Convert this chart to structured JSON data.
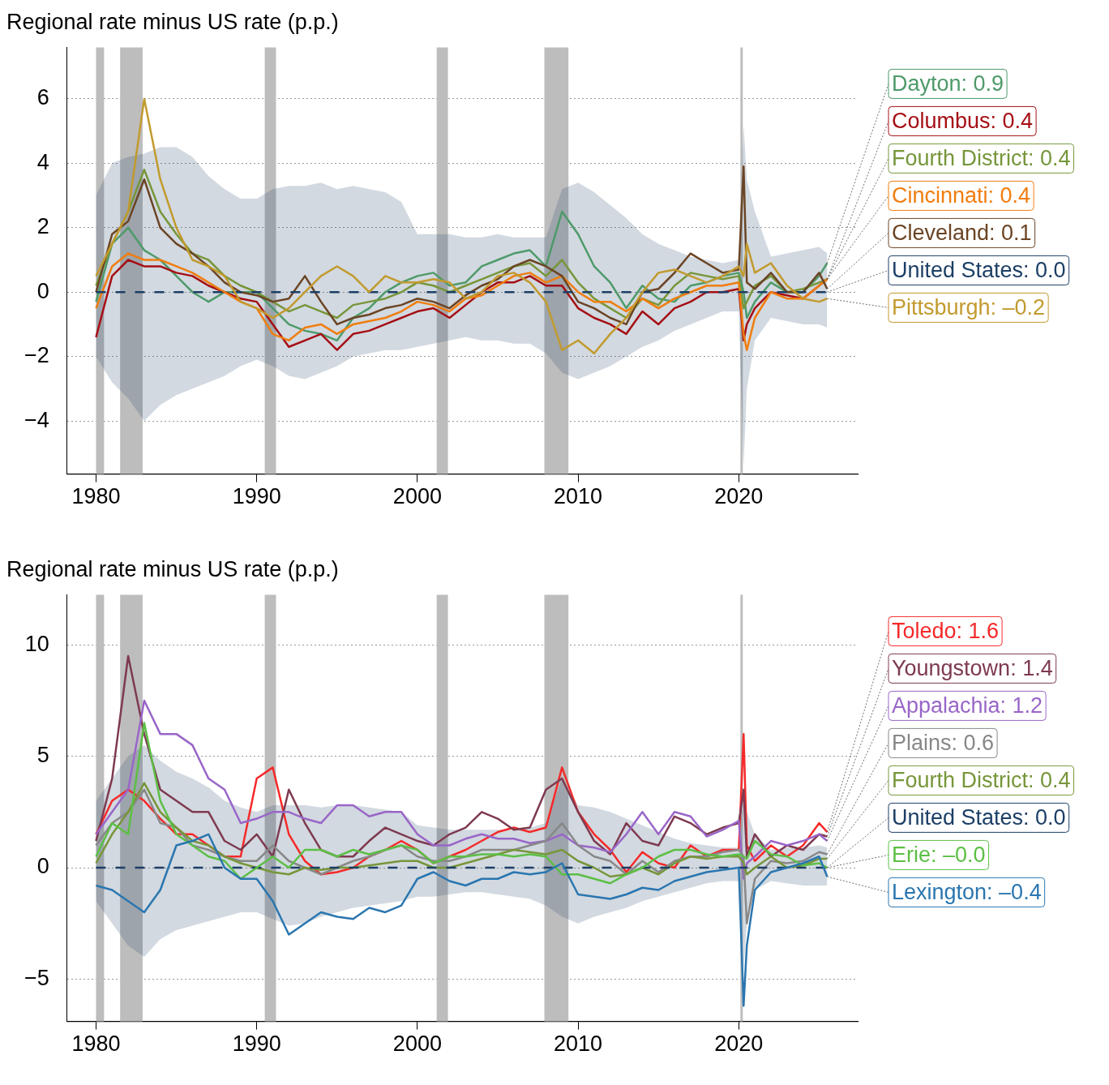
{
  "chart_data": [
    {
      "type": "line",
      "title": "Regional rate minus US rate (p.p.)",
      "x": [
        1980,
        1981,
        1982,
        1983,
        1984,
        1985,
        1986,
        1987,
        1988,
        1989,
        1990,
        1991,
        1992,
        1993,
        1994,
        1995,
        1996,
        1997,
        1998,
        1999,
        2000,
        2001,
        2002,
        2003,
        2004,
        2005,
        2006,
        2007,
        2008,
        2009,
        2010,
        2011,
        2012,
        2013,
        2014,
        2015,
        2016,
        2017,
        2018,
        2019,
        2020,
        2020.3,
        2020.5,
        2021,
        2022,
        2023,
        2024,
        2025,
        2025.5
      ],
      "xlim": [
        1978.2,
        2027.4
      ],
      "xticks": [
        1980,
        1990,
        2000,
        2010,
        2020
      ],
      "ylim": [
        -5.65,
        7.6
      ],
      "yticks": [
        {
          "value": -4,
          "label": "−4"
        },
        {
          "value": -2,
          "label": "−2"
        },
        0,
        2,
        4,
        6
      ],
      "grid": "y",
      "legend": "right",
      "bands": [
        {
          "axis": "x",
          "from": 1980,
          "to": 1980.5,
          "color": "#bdbdbd"
        },
        {
          "axis": "x",
          "from": 1981.5,
          "to": 1982.9,
          "color": "#bdbdbd"
        },
        {
          "axis": "x",
          "from": 1990.5,
          "to": 1991.2,
          "color": "#bdbdbd"
        },
        {
          "axis": "x",
          "from": 2001.2,
          "to": 2001.9,
          "color": "#bdbdbd"
        },
        {
          "axis": "x",
          "from": 2007.9,
          "to": 2009.4,
          "color": "#bdbdbd"
        },
        {
          "axis": "x",
          "from": 2020.1,
          "to": 2020.25,
          "color": "#bdbdbd"
        }
      ],
      "series": [
        {
          "name": "Dayton: 0.9",
          "color": "#4e9a6a",
          "values": [
            -0.3,
            1.5,
            2.0,
            1.3,
            1.0,
            0.5,
            0.0,
            -0.3,
            0.0,
            0.0,
            0.0,
            -0.5,
            -1.0,
            -1.2,
            -1.3,
            -1.5,
            -0.8,
            -0.5,
            0.0,
            0.3,
            0.5,
            0.6,
            0.2,
            0.3,
            0.8,
            1.0,
            1.2,
            1.3,
            0.8,
            2.5,
            1.8,
            0.8,
            0.3,
            -0.5,
            0.2,
            -0.2,
            -0.3,
            0.2,
            0.3,
            0.5,
            0.6,
            0.0,
            -0.8,
            -0.3,
            0.3,
            0.0,
            0.0,
            0.5,
            0.9
          ]
        },
        {
          "name": "Columbus: 0.4",
          "color": "#a50f15",
          "values": [
            -1.4,
            0.5,
            1.0,
            0.8,
            0.8,
            0.6,
            0.5,
            0.2,
            0.0,
            -0.2,
            -0.3,
            -1.0,
            -1.7,
            -1.5,
            -1.3,
            -1.8,
            -1.3,
            -1.2,
            -1.0,
            -0.8,
            -0.6,
            -0.5,
            -0.8,
            -0.4,
            0.0,
            0.3,
            0.3,
            0.5,
            0.2,
            0.2,
            -0.5,
            -0.8,
            -1.0,
            -1.3,
            -0.6,
            -1.0,
            -0.5,
            -0.3,
            0.0,
            0.0,
            0.1,
            -1.5,
            -1.0,
            -0.5,
            0.0,
            -0.1,
            -0.2,
            0.2,
            0.4
          ]
        },
        {
          "name": "Fourth District: 0.4",
          "color": "#77963a",
          "values": [
            0.2,
            1.5,
            2.5,
            3.8,
            2.5,
            1.8,
            1.2,
            1.0,
            0.5,
            0.2,
            0.0,
            -0.3,
            -0.6,
            -0.4,
            -0.6,
            -0.8,
            -0.4,
            -0.3,
            -0.2,
            0.0,
            0.3,
            0.2,
            0.0,
            0.2,
            0.4,
            0.6,
            0.8,
            0.9,
            0.5,
            1.0,
            0.3,
            -0.2,
            -0.5,
            -0.8,
            -0.2,
            -0.4,
            0.2,
            0.6,
            0.5,
            0.4,
            0.5,
            -0.5,
            -0.3,
            0.2,
            0.5,
            0.0,
            0.1,
            0.3,
            0.4
          ]
        },
        {
          "name": "Cincinnati: 0.4",
          "color": "#f07d0f",
          "values": [
            -0.5,
            0.8,
            1.2,
            1.0,
            1.0,
            0.8,
            0.6,
            0.3,
            0.0,
            -0.3,
            -0.5,
            -1.3,
            -1.5,
            -1.1,
            -1.0,
            -1.3,
            -1.0,
            -0.9,
            -0.8,
            -0.6,
            -0.3,
            -0.4,
            -0.6,
            -0.2,
            -0.1,
            0.2,
            0.5,
            0.6,
            0.3,
            0.5,
            0.0,
            -0.3,
            -0.3,
            -0.6,
            -0.2,
            -0.5,
            -0.2,
            0.0,
            0.2,
            0.2,
            0.3,
            -1.3,
            -1.8,
            -0.8,
            0.0,
            -0.2,
            -0.2,
            0.2,
            0.4
          ]
        },
        {
          "name": "Cleveland: 0.1",
          "color": "#6b4424",
          "values": [
            0.0,
            1.8,
            2.2,
            3.5,
            2.0,
            1.5,
            1.2,
            0.8,
            0.3,
            0.0,
            -0.1,
            -0.3,
            -0.2,
            0.5,
            -0.3,
            -1.0,
            -0.8,
            -0.7,
            -0.5,
            -0.4,
            -0.2,
            -0.3,
            -0.5,
            -0.1,
            0.2,
            0.4,
            0.8,
            1.0,
            0.8,
            0.5,
            -0.3,
            -0.5,
            -0.8,
            -1.0,
            0.0,
            0.1,
            0.6,
            1.2,
            0.9,
            0.6,
            0.7,
            3.9,
            0.3,
            0.1,
            0.6,
            0.0,
            0.0,
            0.6,
            0.1
          ]
        },
        {
          "name": "United States: 0.0",
          "color": "#1c3f66",
          "line_style": "dashed",
          "values": [
            0,
            0,
            0,
            0,
            0,
            0,
            0,
            0,
            0,
            0,
            0,
            0,
            0,
            0,
            0,
            0,
            0,
            0,
            0,
            0,
            0,
            0,
            0,
            0,
            0,
            0,
            0,
            0,
            0,
            0,
            0,
            0,
            0,
            0,
            0,
            0,
            0,
            0,
            0,
            0,
            0,
            0,
            0,
            0,
            0,
            0,
            0,
            0,
            0
          ],
          "lower": [
            -2.0,
            -2.8,
            -3.3,
            -4.0,
            -3.5,
            -3.2,
            -3.0,
            -2.8,
            -2.6,
            -2.3,
            -2.1,
            -2.3,
            -2.6,
            -2.7,
            -2.5,
            -2.3,
            -2.0,
            -1.9,
            -1.8,
            -1.8,
            -1.7,
            -1.6,
            -1.5,
            -1.4,
            -1.5,
            -1.5,
            -1.6,
            -1.6,
            -1.9,
            -2.5,
            -2.7,
            -2.5,
            -2.3,
            -2.0,
            -1.7,
            -1.5,
            -1.2,
            -1.0,
            -0.8,
            -0.6,
            -0.6,
            -5.4,
            -3.0,
            -1.5,
            -0.8,
            -0.9,
            -1.0,
            -1.0,
            -1.1
          ],
          "upper": [
            3.0,
            4.0,
            4.2,
            4.3,
            4.5,
            4.5,
            4.2,
            3.6,
            3.2,
            2.9,
            2.9,
            3.2,
            3.3,
            3.3,
            3.4,
            3.2,
            3.3,
            3.2,
            3.1,
            2.8,
            1.8,
            1.8,
            1.8,
            1.7,
            1.7,
            1.8,
            1.7,
            1.7,
            1.7,
            3.2,
            3.4,
            3.1,
            2.7,
            2.3,
            1.8,
            1.5,
            1.3,
            1.1,
            1.0,
            0.9,
            1.0,
            5.2,
            3.5,
            2.5,
            1.1,
            1.2,
            1.3,
            1.4,
            1.2
          ]
        },
        {
          "name": "Pittsburgh: –0.2",
          "color": "#c29a2e",
          "values": [
            0.5,
            1.5,
            2.5,
            6.0,
            3.5,
            2.0,
            1.0,
            0.8,
            0.5,
            -0.3,
            -0.5,
            -0.8,
            -0.5,
            0.0,
            0.5,
            0.8,
            0.5,
            0.0,
            0.5,
            0.3,
            0.3,
            0.4,
            0.3,
            -0.2,
            0.0,
            0.5,
            0.6,
            0.3,
            -0.3,
            -1.8,
            -1.5,
            -1.9,
            -1.3,
            -0.8,
            0.0,
            0.6,
            0.7,
            0.5,
            0.3,
            0.5,
            0.8,
            0.5,
            1.5,
            0.6,
            0.9,
            0.2,
            -0.2,
            -0.3,
            -0.2
          ]
        }
      ]
    },
    {
      "type": "line",
      "title": "Regional rate minus US rate (p.p.)",
      "x": [
        1980,
        1981,
        1982,
        1983,
        1984,
        1985,
        1986,
        1987,
        1988,
        1989,
        1990,
        1991,
        1992,
        1993,
        1994,
        1995,
        1996,
        1997,
        1998,
        1999,
        2000,
        2001,
        2002,
        2003,
        2004,
        2005,
        2006,
        2007,
        2008,
        2009,
        2010,
        2011,
        2012,
        2013,
        2014,
        2015,
        2016,
        2017,
        2018,
        2019,
        2020,
        2020.3,
        2020.5,
        2021,
        2022,
        2023,
        2024,
        2025,
        2025.5
      ],
      "xlim": [
        1978.2,
        2027.4
      ],
      "xticks": [
        1980,
        1990,
        2000,
        2010,
        2020
      ],
      "ylim": [
        -6.9,
        12.25
      ],
      "yticks": [
        {
          "value": -5,
          "label": "−5"
        },
        0,
        5,
        10
      ],
      "grid": "y",
      "legend": "right",
      "bands": [
        {
          "axis": "x",
          "from": 1980,
          "to": 1980.5,
          "color": "#bdbdbd"
        },
        {
          "axis": "x",
          "from": 1981.5,
          "to": 1982.9,
          "color": "#bdbdbd"
        },
        {
          "axis": "x",
          "from": 1990.5,
          "to": 1991.2,
          "color": "#bdbdbd"
        },
        {
          "axis": "x",
          "from": 2001.2,
          "to": 2001.9,
          "color": "#bdbdbd"
        },
        {
          "axis": "x",
          "from": 2007.9,
          "to": 2009.4,
          "color": "#bdbdbd"
        },
        {
          "axis": "x",
          "from": 2020.1,
          "to": 2020.25,
          "color": "#bdbdbd"
        }
      ],
      "series": [
        {
          "name": "Toledo: 1.6",
          "color": "#f52a2a",
          "values": [
            1.5,
            3.0,
            3.5,
            3.0,
            2.2,
            1.5,
            1.5,
            1.0,
            0.5,
            0.5,
            4.0,
            4.5,
            1.5,
            0.3,
            -0.3,
            -0.2,
            0.0,
            0.5,
            0.8,
            1.2,
            0.8,
            0.2,
            0.5,
            0.8,
            1.2,
            1.6,
            1.8,
            1.6,
            1.8,
            4.5,
            2.5,
            1.5,
            0.8,
            -0.2,
            0.7,
            0.2,
            0.0,
            1.0,
            0.5,
            0.8,
            0.8,
            6.0,
            1.0,
            0.3,
            1.0,
            0.5,
            1.0,
            2.0,
            1.6
          ]
        },
        {
          "name": "Youngstown: 1.4",
          "color": "#7e3a50",
          "values": [
            1.2,
            4.0,
            9.5,
            6.0,
            3.5,
            3.0,
            2.5,
            2.5,
            1.2,
            0.8,
            1.5,
            0.5,
            3.5,
            2.0,
            0.8,
            0.5,
            0.5,
            1.2,
            1.8,
            1.5,
            1.2,
            1.0,
            1.5,
            1.8,
            2.5,
            2.2,
            1.7,
            1.8,
            3.5,
            4.0,
            2.5,
            1.2,
            0.6,
            2.0,
            1.2,
            1.0,
            2.3,
            2.0,
            1.5,
            1.8,
            2.0,
            3.5,
            0.5,
            1.5,
            0.5,
            1.0,
            0.8,
            1.5,
            1.4
          ]
        },
        {
          "name": "Appalachia: 1.2",
          "color": "#9966c8",
          "values": [
            1.5,
            2.5,
            3.5,
            7.5,
            6.0,
            6.0,
            5.5,
            4.0,
            3.5,
            2.0,
            2.2,
            2.5,
            2.5,
            2.2,
            2.0,
            2.8,
            2.8,
            2.3,
            2.5,
            2.5,
            1.5,
            1.0,
            1.0,
            1.3,
            1.5,
            1.3,
            1.3,
            1.1,
            1.2,
            1.5,
            1.0,
            0.9,
            0.7,
            1.5,
            2.5,
            1.5,
            2.5,
            2.3,
            1.4,
            1.7,
            2.1,
            -0.5,
            0.2,
            0.5,
            1.2,
            1.0,
            1.2,
            1.5,
            1.2
          ]
        },
        {
          "name": "Plains: 0.6",
          "color": "#888888",
          "values": [
            1.0,
            2.0,
            2.5,
            3.5,
            2.0,
            1.8,
            1.0,
            0.8,
            0.5,
            0.3,
            0.3,
            1.0,
            0.3,
            0.0,
            -0.3,
            0.0,
            0.3,
            0.5,
            0.8,
            1.0,
            0.5,
            0.3,
            0.3,
            0.5,
            0.8,
            0.8,
            0.8,
            1.0,
            1.2,
            2.0,
            1.0,
            0.5,
            0.3,
            -0.3,
            0.3,
            -0.2,
            0.3,
            0.5,
            0.5,
            0.7,
            0.8,
            0.5,
            -2.5,
            -0.5,
            0.3,
            0.2,
            0.3,
            0.7,
            0.6
          ]
        },
        {
          "name": "Fourth District: 0.4",
          "color": "#77963a",
          "values": [
            0.2,
            1.5,
            2.5,
            3.8,
            2.5,
            1.8,
            1.2,
            1.0,
            0.5,
            0.2,
            0.0,
            -0.2,
            -0.3,
            0.0,
            -0.1,
            0.0,
            0.0,
            0.1,
            0.2,
            0.3,
            0.3,
            0.0,
            0.0,
            0.2,
            0.4,
            0.6,
            0.8,
            0.7,
            0.6,
            0.8,
            0.3,
            0.0,
            -0.4,
            -0.3,
            0.0,
            -0.3,
            0.2,
            0.5,
            0.4,
            0.5,
            0.5,
            0.2,
            -0.3,
            0.0,
            0.5,
            0.0,
            0.1,
            0.4,
            0.4
          ]
        },
        {
          "name": "United States: 0.0",
          "color": "#1c3f66",
          "line_style": "dashed",
          "values": [
            0,
            0,
            0,
            0,
            0,
            0,
            0,
            0,
            0,
            0,
            0,
            0,
            0,
            0,
            0,
            0,
            0,
            0,
            0,
            0,
            0,
            0,
            0,
            0,
            0,
            0,
            0,
            0,
            0,
            0,
            0,
            0,
            0,
            0,
            0,
            0,
            0,
            0,
            0,
            0,
            0,
            0,
            0,
            0,
            0,
            0,
            0,
            0,
            0
          ],
          "lower": [
            -1.5,
            -2.5,
            -3.5,
            -4.0,
            -3.2,
            -2.8,
            -2.6,
            -2.4,
            -2.2,
            -2.0,
            -2.0,
            -2.3,
            -2.6,
            -2.5,
            -2.2,
            -2.0,
            -1.8,
            -1.7,
            -1.6,
            -1.5,
            -1.3,
            -1.3,
            -1.2,
            -1.1,
            -1.1,
            -1.2,
            -1.3,
            -1.4,
            -1.7,
            -2.2,
            -2.5,
            -2.2,
            -2.0,
            -1.8,
            -1.5,
            -1.3,
            -1.1,
            -0.9,
            -0.7,
            -0.6,
            -0.6,
            -4.5,
            -2.5,
            -1.0,
            -0.6,
            -0.7,
            -0.8,
            -0.8,
            -0.8
          ],
          "upper": [
            3.0,
            4.0,
            5.0,
            5.5,
            4.8,
            4.3,
            4.0,
            3.6,
            3.0,
            2.7,
            2.5,
            2.8,
            2.8,
            2.8,
            2.7,
            2.8,
            2.8,
            2.7,
            2.6,
            2.5,
            1.9,
            1.8,
            1.7,
            1.7,
            1.7,
            1.7,
            1.7,
            1.8,
            2.0,
            4.0,
            2.8,
            2.7,
            2.5,
            2.2,
            1.9,
            1.6,
            1.3,
            1.1,
            1.0,
            0.9,
            0.9,
            3.5,
            2.5,
            1.5,
            0.8,
            0.9,
            0.9,
            1.0,
            0.9
          ]
        },
        {
          "name": "Erie: –0.0",
          "color": "#5cbf45",
          "values": [
            0.5,
            2.0,
            1.5,
            6.5,
            3.0,
            1.5,
            1.0,
            0.5,
            0.3,
            -0.5,
            0.0,
            0.5,
            0.0,
            0.8,
            0.8,
            0.5,
            0.8,
            0.6,
            0.8,
            1.0,
            0.8,
            0.2,
            0.5,
            0.5,
            0.6,
            0.6,
            0.5,
            0.6,
            0.5,
            -0.3,
            -0.3,
            -0.5,
            -0.7,
            -0.3,
            0.0,
            0.5,
            0.8,
            0.8,
            0.6,
            0.5,
            0.6,
            0.5,
            0.4,
            1.2,
            0.6,
            0.5,
            0.1,
            0.2,
            0.0
          ]
        },
        {
          "name": "Lexington: –0.4",
          "color": "#2a76b0",
          "values": [
            -0.8,
            -1.0,
            -1.5,
            -2.0,
            -1.0,
            1.0,
            1.2,
            1.5,
            0.0,
            -0.5,
            -0.5,
            -1.5,
            -3.0,
            -2.5,
            -2.0,
            -2.2,
            -2.3,
            -1.8,
            -2.0,
            -1.7,
            -0.5,
            -0.2,
            -0.6,
            -0.8,
            -0.5,
            -0.5,
            -0.2,
            -0.3,
            -0.2,
            0.2,
            -1.2,
            -1.3,
            -1.4,
            -1.2,
            -0.9,
            -1.0,
            -0.6,
            -0.4,
            -0.2,
            -0.1,
            0.0,
            -6.2,
            -3.5,
            -1.0,
            -0.2,
            0.0,
            0.2,
            0.5,
            -0.4
          ]
        }
      ]
    }
  ]
}
